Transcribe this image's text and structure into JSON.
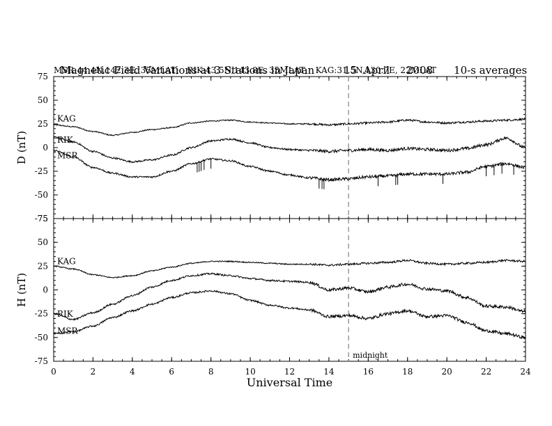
{
  "header": {
    "title": "Magnetic Field Variations at 3 Stations in Japan",
    "date": "15  April     2008",
    "averaging": "10-s averages",
    "stations_line": "MSR:44.4N,142.3E, 35MLAT;   RIK:43.5N,143.8E, 35MLAT;   KAG:31.5N,130.7E, 22MLAT"
  },
  "chart_data": [
    {
      "type": "line",
      "panel": "D",
      "ylabel": "D (nT)",
      "ylim": [
        -75,
        75
      ],
      "yticks": [
        -75,
        -50,
        -25,
        0,
        25,
        50,
        75
      ],
      "xlim": [
        0,
        24
      ],
      "xticks": [
        0,
        2,
        4,
        6,
        8,
        10,
        12,
        14,
        16,
        18,
        20,
        22,
        24
      ],
      "series": [
        {
          "name": "KAG",
          "x": [
            0,
            1,
            2,
            3,
            4,
            5,
            6,
            7,
            8,
            9,
            10,
            11,
            12,
            13,
            14,
            15,
            16,
            17,
            18,
            19,
            20,
            21,
            22,
            23,
            24
          ],
          "values": [
            24,
            22,
            17,
            13,
            16,
            19,
            21,
            26,
            28,
            29,
            27,
            26,
            25,
            25,
            24,
            25,
            26,
            27,
            29,
            27,
            26,
            27,
            28,
            29,
            30
          ]
        },
        {
          "name": "RIK",
          "x": [
            0,
            1,
            2,
            3,
            4,
            5,
            6,
            7,
            8,
            9,
            10,
            11,
            12,
            13,
            14,
            15,
            16,
            17,
            18,
            19,
            20,
            21,
            22,
            23,
            24
          ],
          "values": [
            11,
            6,
            -4,
            -11,
            -15,
            -13,
            -8,
            0,
            7,
            9,
            5,
            0,
            -2,
            -3,
            -4,
            -3,
            -2,
            -3,
            -1,
            -2,
            -3,
            -1,
            3,
            10,
            0
          ]
        },
        {
          "name": "MSR",
          "x": [
            0,
            1,
            2,
            3,
            4,
            5,
            6,
            7,
            8,
            9,
            10,
            11,
            12,
            13,
            14,
            15,
            16,
            17,
            18,
            19,
            20,
            21,
            22,
            23,
            24
          ],
          "values": [
            -3,
            -10,
            -21,
            -27,
            -31,
            -31,
            -25,
            -17,
            -12,
            -14,
            -20,
            -25,
            -29,
            -32,
            -34,
            -33,
            -31,
            -30,
            -28,
            -28,
            -28,
            -26,
            -20,
            -17,
            -21
          ]
        }
      ]
    },
    {
      "type": "line",
      "panel": "H",
      "ylabel": "H (nT)",
      "xlabel": "Universal Time",
      "ylim": [
        -75,
        75
      ],
      "yticks": [
        -75,
        -50,
        -25,
        0,
        25,
        50,
        75
      ],
      "xlim": [
        0,
        24
      ],
      "xticks": [
        0,
        2,
        4,
        6,
        8,
        10,
        12,
        14,
        16,
        18,
        20,
        22,
        24
      ],
      "series": [
        {
          "name": "KAG",
          "x": [
            0,
            1,
            2,
            3,
            4,
            5,
            6,
            7,
            8,
            9,
            10,
            11,
            12,
            13,
            14,
            15,
            16,
            17,
            18,
            19,
            20,
            21,
            22,
            23,
            24
          ],
          "values": [
            25,
            22,
            16,
            13,
            15,
            20,
            24,
            28,
            30,
            30,
            29,
            28,
            27,
            27,
            26,
            27,
            28,
            29,
            31,
            28,
            27,
            28,
            29,
            31,
            30
          ]
        },
        {
          "name": "RIK",
          "x": [
            0,
            1,
            2,
            3,
            4,
            5,
            6,
            7,
            8,
            9,
            10,
            11,
            12,
            13,
            14,
            15,
            16,
            17,
            18,
            19,
            20,
            21,
            22,
            23,
            24
          ],
          "values": [
            -25,
            -31,
            -24,
            -15,
            -6,
            3,
            10,
            15,
            17,
            15,
            12,
            10,
            9,
            8,
            0,
            2,
            -2,
            3,
            6,
            1,
            -1,
            -8,
            -17,
            -18,
            -23
          ]
        },
        {
          "name": "MSR",
          "x": [
            0,
            1,
            2,
            3,
            4,
            5,
            6,
            7,
            8,
            9,
            10,
            11,
            12,
            13,
            14,
            15,
            16,
            17,
            18,
            19,
            20,
            21,
            22,
            23,
            24
          ],
          "values": [
            -46,
            -44,
            -38,
            -29,
            -22,
            -15,
            -8,
            -3,
            -1,
            -4,
            -11,
            -16,
            -19,
            -21,
            -28,
            -27,
            -30,
            -25,
            -22,
            -28,
            -27,
            -34,
            -43,
            -46,
            -50
          ]
        }
      ],
      "annotations": [
        {
          "text": "midnight"
        }
      ]
    }
  ],
  "midnight_ut": 15
}
